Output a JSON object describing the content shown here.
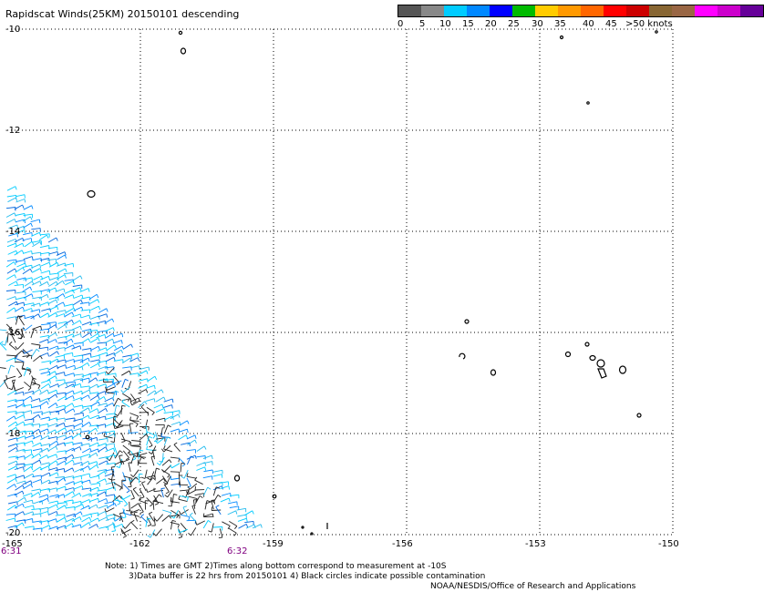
{
  "title": "Rapidscat Winds(25KM) 20150101 descending",
  "legend": {
    "colors": [
      "#555555",
      "#888888",
      "#00ccff",
      "#0088ff",
      "#0000ff",
      "#00bb00",
      "#ffcc00",
      "#ff9900",
      "#ff6600",
      "#ff0000",
      "#cc0000",
      "#886633",
      "#996644",
      "#ff00ff",
      "#cc00cc",
      "#660099"
    ],
    "labels": [
      "0",
      "5",
      "10",
      "15",
      "20",
      "25",
      "30",
      "35",
      "40",
      "45",
      ">50 knots"
    ]
  },
  "axes": {
    "y_ticks": [
      "-10",
      "-12",
      "-14",
      "-16",
      "-18",
      "-20"
    ],
    "x_ticks": [
      "-165",
      "-162",
      "-159",
      "-156",
      "-153",
      "-150"
    ]
  },
  "times": [
    "6:31",
    "6:32"
  ],
  "notes": [
    "Note: 1) Times are GMT 2)Times along bottom correspond to measurement at -10S",
    "3)Data buffer is 22 hrs from 20150101 4) Black circles indicate possible contamination"
  ],
  "credit": "NOAA/NESDIS/Office of Research and Applications"
}
